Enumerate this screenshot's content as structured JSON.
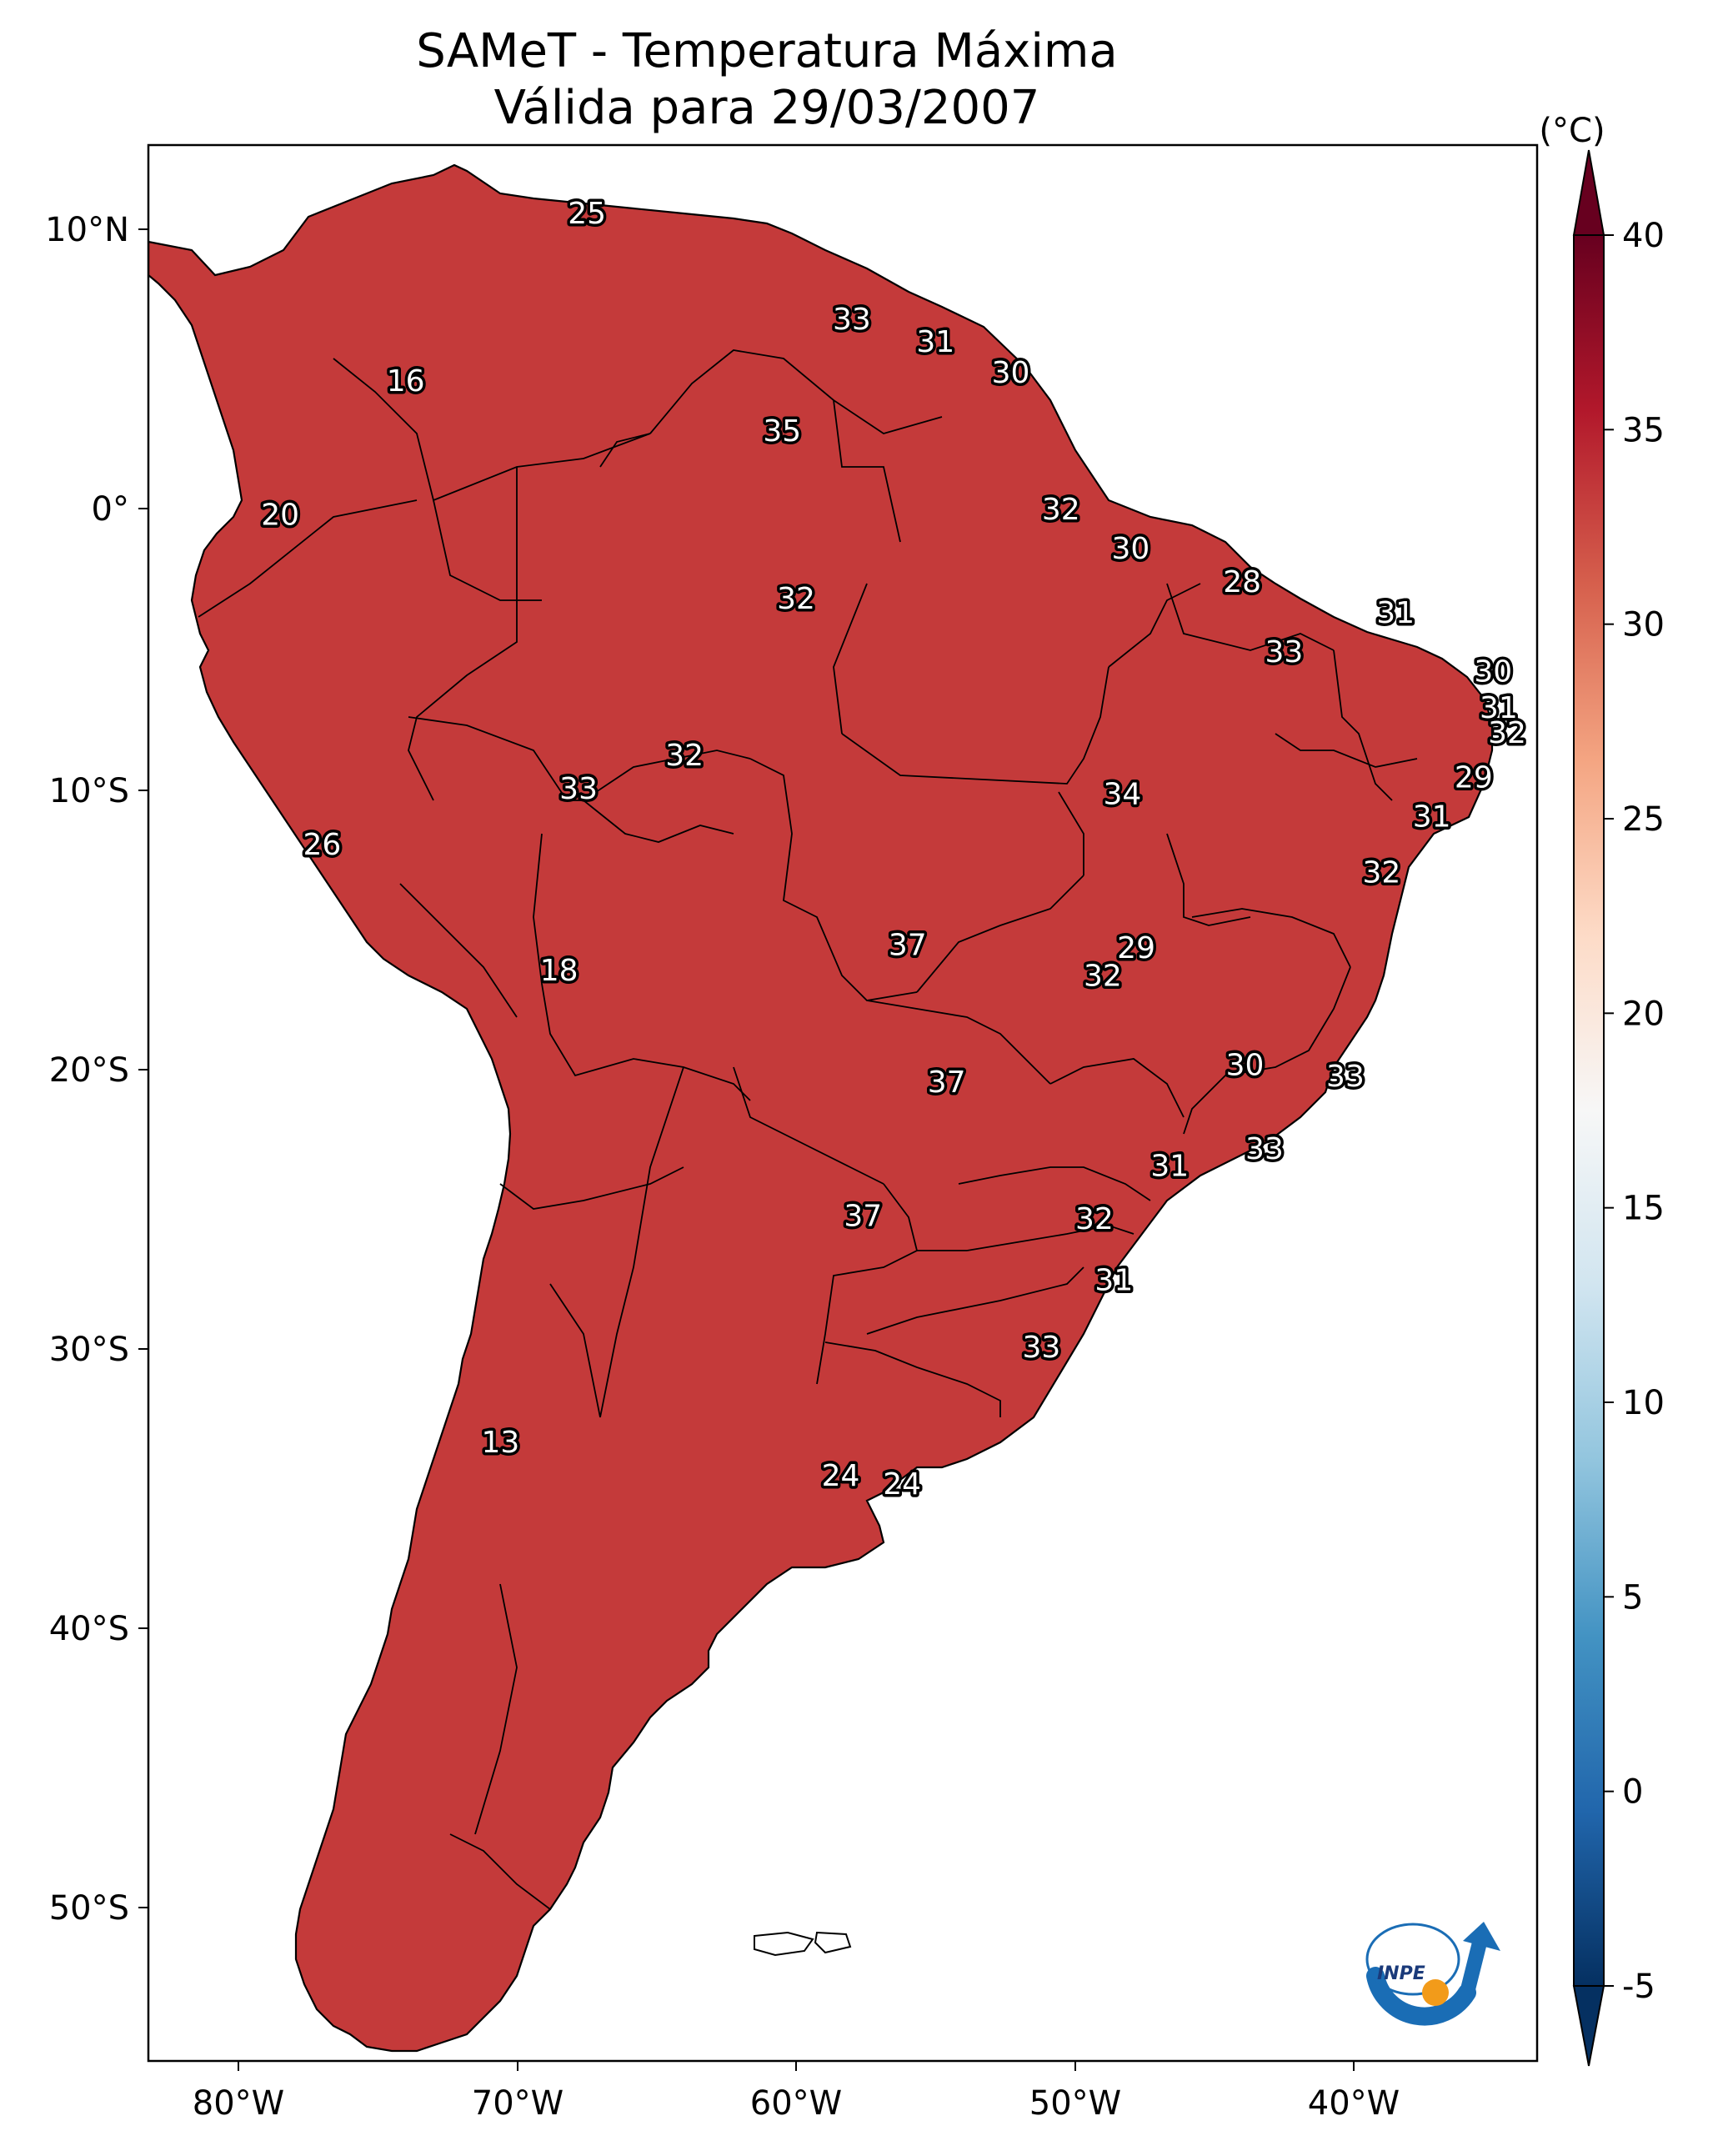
{
  "title": {
    "line1": "SAMeT - Temperatura Máxima",
    "line2": "Válida para 29/03/2007"
  },
  "axes": {
    "lon_ticks": [
      "80°W",
      "70°W",
      "60°W",
      "50°W",
      "40°W"
    ],
    "lat_ticks": [
      "10°N",
      "0°",
      "10°S",
      "20°S",
      "30°S",
      "40°S",
      "50°S"
    ]
  },
  "colorbar": {
    "unit": "(°C)",
    "ticks": [
      "40",
      "35",
      "30",
      "25",
      "20",
      "15",
      "10",
      "5",
      "0",
      "-5"
    ],
    "min": -5,
    "max": 40,
    "colors": [
      "#053061",
      "#2166ac",
      "#4393c3",
      "#92c5de",
      "#d1e5f0",
      "#f7f7f7",
      "#fddbc7",
      "#f4a582",
      "#d6604d",
      "#b2182b",
      "#67001f"
    ]
  },
  "map_labels": [
    {
      "value": "25",
      "lon": -67.5,
      "lat": 10.6
    },
    {
      "value": "16",
      "lon": -74.0,
      "lat": 4.6
    },
    {
      "value": "20",
      "lon": -78.5,
      "lat": -0.2
    },
    {
      "value": "33",
      "lon": -58.0,
      "lat": 6.8
    },
    {
      "value": "31",
      "lon": -55.0,
      "lat": 6.0
    },
    {
      "value": "30",
      "lon": -52.3,
      "lat": 4.9
    },
    {
      "value": "35",
      "lon": -60.5,
      "lat": 2.8
    },
    {
      "value": "32",
      "lon": -50.5,
      "lat": 0.0
    },
    {
      "value": "30",
      "lon": -48.0,
      "lat": -1.4
    },
    {
      "value": "28",
      "lon": -44.0,
      "lat": -2.6
    },
    {
      "value": "32",
      "lon": -60.0,
      "lat": -3.2
    },
    {
      "value": "31",
      "lon": -38.5,
      "lat": -3.7
    },
    {
      "value": "33",
      "lon": -42.5,
      "lat": -5.1
    },
    {
      "value": "30",
      "lon": -35.0,
      "lat": -5.8
    },
    {
      "value": "31",
      "lon": -34.8,
      "lat": -7.1
    },
    {
      "value": "32",
      "lon": -34.5,
      "lat": -8.0
    },
    {
      "value": "32",
      "lon": -64.0,
      "lat": -8.8
    },
    {
      "value": "33",
      "lon": -67.8,
      "lat": -10.0
    },
    {
      "value": "29",
      "lon": -35.7,
      "lat": -9.6
    },
    {
      "value": "34",
      "lon": -48.3,
      "lat": -10.2
    },
    {
      "value": "31",
      "lon": -37.2,
      "lat": -11.0
    },
    {
      "value": "26",
      "lon": -77.0,
      "lat": -12.0
    },
    {
      "value": "32",
      "lon": -39.0,
      "lat": -13.0
    },
    {
      "value": "37",
      "lon": -56.0,
      "lat": -15.6
    },
    {
      "value": "29",
      "lon": -47.8,
      "lat": -15.7
    },
    {
      "value": "32",
      "lon": -49.0,
      "lat": -16.7
    },
    {
      "value": "18",
      "lon": -68.5,
      "lat": -16.5
    },
    {
      "value": "30",
      "lon": -43.9,
      "lat": -19.9
    },
    {
      "value": "33",
      "lon": -40.3,
      "lat": -20.3
    },
    {
      "value": "37",
      "lon": -54.6,
      "lat": -20.5
    },
    {
      "value": "33",
      "lon": -43.2,
      "lat": -22.9
    },
    {
      "value": "31",
      "lon": -46.6,
      "lat": -23.5
    },
    {
      "value": "37",
      "lon": -57.6,
      "lat": -25.3
    },
    {
      "value": "32",
      "lon": -49.3,
      "lat": -25.4
    },
    {
      "value": "31",
      "lon": -48.6,
      "lat": -27.6
    },
    {
      "value": "33",
      "lon": -51.2,
      "lat": -30.0
    },
    {
      "value": "13",
      "lon": -70.6,
      "lat": -33.4
    },
    {
      "value": "24",
      "lon": -58.4,
      "lat": -34.6
    },
    {
      "value": "24",
      "lon": -56.2,
      "lat": -34.9
    }
  ],
  "logo": {
    "text": "INPE"
  }
}
